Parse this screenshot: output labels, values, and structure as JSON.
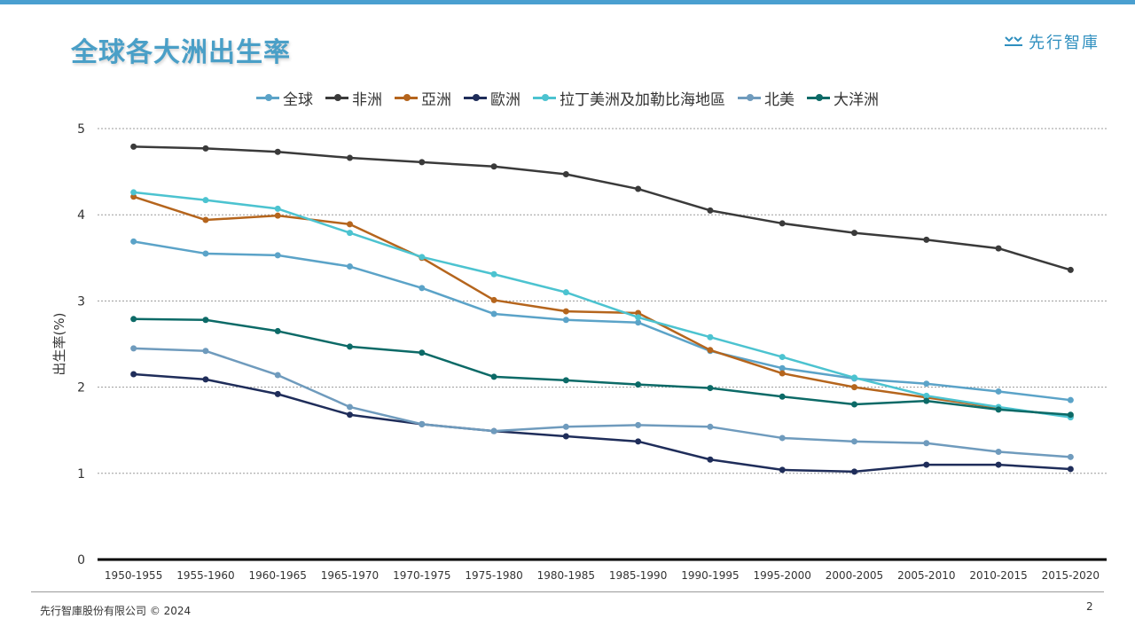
{
  "title": "全球各大洲出生率",
  "logo": {
    "text": "先行智庫",
    "icon": "logo-mark-icon"
  },
  "footer": {
    "company": "先行智庫股份有限公司 © 2024",
    "page": "2"
  },
  "colors": {
    "topbar": "#4a9fd0",
    "title": "#4a9fc7"
  },
  "chart_data": {
    "type": "line",
    "title": "",
    "xlabel": "",
    "ylabel": "出生率(%)",
    "ylim": [
      0,
      5
    ],
    "yticks": [
      "0",
      "1",
      "2",
      "3",
      "4",
      "5"
    ],
    "grid": true,
    "legend": "top",
    "categories": [
      "1950-1955",
      "1955-1960",
      "1960-1965",
      "1965-1970",
      "1970-1975",
      "1975-1980",
      "1980-1985",
      "1985-1990",
      "1990-1995",
      "1995-2000",
      "2000-2005",
      "2005-2010",
      "2010-2015",
      "2015-2020"
    ],
    "series": [
      {
        "name": "全球",
        "color": "#5ba3c8",
        "values": [
          3.69,
          3.55,
          3.53,
          3.4,
          3.15,
          2.85,
          2.78,
          2.75,
          2.42,
          2.22,
          2.1,
          2.04,
          1.95,
          1.85
        ]
      },
      {
        "name": "非洲",
        "color": "#3a3a3a",
        "values": [
          4.79,
          4.77,
          4.73,
          4.66,
          4.61,
          4.56,
          4.47,
          4.3,
          4.05,
          3.9,
          3.79,
          3.71,
          3.61,
          3.36
        ]
      },
      {
        "name": "亞洲",
        "color": "#b5651d",
        "values": [
          4.21,
          3.94,
          3.99,
          3.89,
          3.5,
          3.01,
          2.88,
          2.86,
          2.43,
          2.16,
          2.0,
          1.88,
          1.76,
          1.66
        ]
      },
      {
        "name": "歐洲",
        "color": "#1f2d5a",
        "values": [
          2.15,
          2.09,
          1.92,
          1.68,
          1.57,
          1.49,
          1.43,
          1.37,
          1.16,
          1.04,
          1.02,
          1.1,
          1.1,
          1.05
        ]
      },
      {
        "name": "拉丁美洲及加勒比海地區",
        "color": "#4cc3d0",
        "values": [
          4.26,
          4.17,
          4.07,
          3.79,
          3.51,
          3.31,
          3.1,
          2.81,
          2.58,
          2.35,
          2.11,
          1.9,
          1.77,
          1.65
        ]
      },
      {
        "name": "北美",
        "color": "#6f9bbd",
        "values": [
          2.45,
          2.42,
          2.14,
          1.77,
          1.57,
          1.49,
          1.54,
          1.56,
          1.54,
          1.41,
          1.37,
          1.35,
          1.25,
          1.19
        ]
      },
      {
        "name": "大洋洲",
        "color": "#0c6a67",
        "values": [
          2.79,
          2.78,
          2.65,
          2.47,
          2.4,
          2.12,
          2.08,
          2.03,
          1.99,
          1.89,
          1.8,
          1.84,
          1.74,
          1.68
        ]
      }
    ]
  }
}
